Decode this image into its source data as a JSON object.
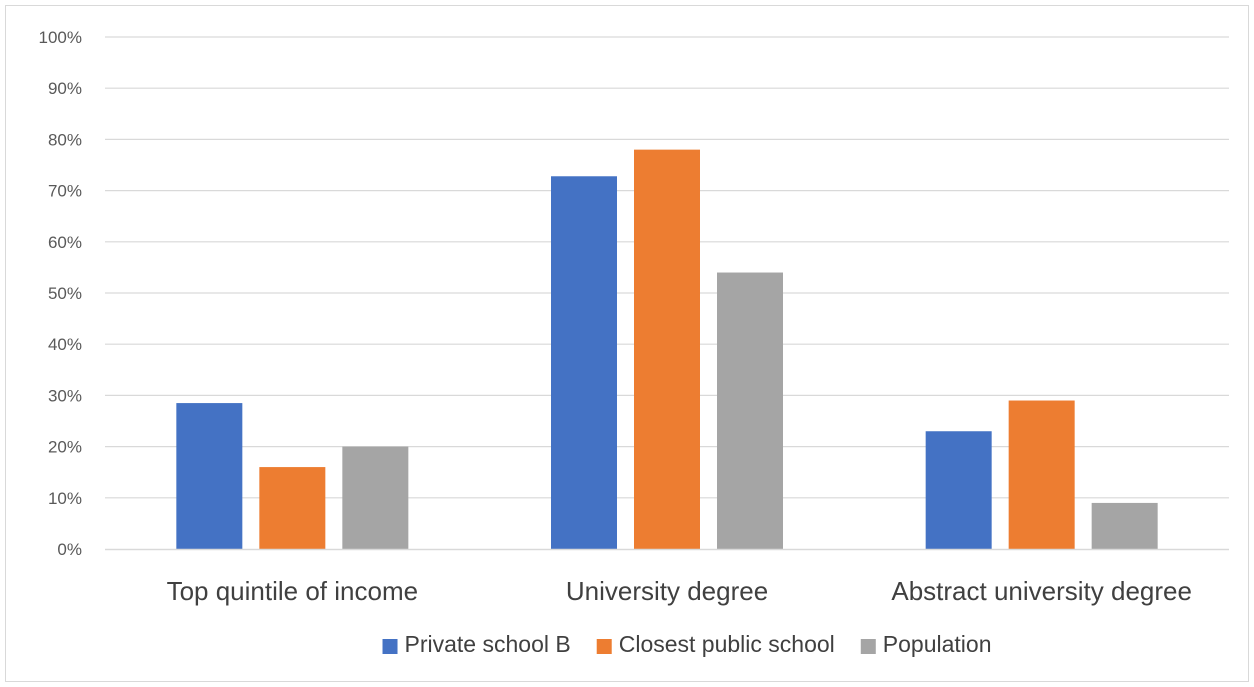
{
  "chart_data": {
    "type": "bar",
    "categories": [
      "Top quintile of income",
      "University degree",
      "Abstract university degree"
    ],
    "series": [
      {
        "name": "Private school B",
        "values": [
          28.5,
          72.8,
          23
        ],
        "color": "#4472C4"
      },
      {
        "name": "Closest public school",
        "values": [
          16,
          78,
          29
        ],
        "color": "#ED7D31"
      },
      {
        "name": "Population",
        "values": [
          20,
          54,
          9
        ],
        "color": "#A5A5A5"
      }
    ],
    "title": "",
    "xlabel": "",
    "ylabel": "",
    "ylim": [
      0,
      100
    ],
    "y_ticks": [
      "0%",
      "10%",
      "20%",
      "30%",
      "40%",
      "50%",
      "60%",
      "70%",
      "80%",
      "90%",
      "100%"
    ],
    "grid": true,
    "legend_position": "bottom",
    "gridline_color": "#d9d9d9"
  }
}
